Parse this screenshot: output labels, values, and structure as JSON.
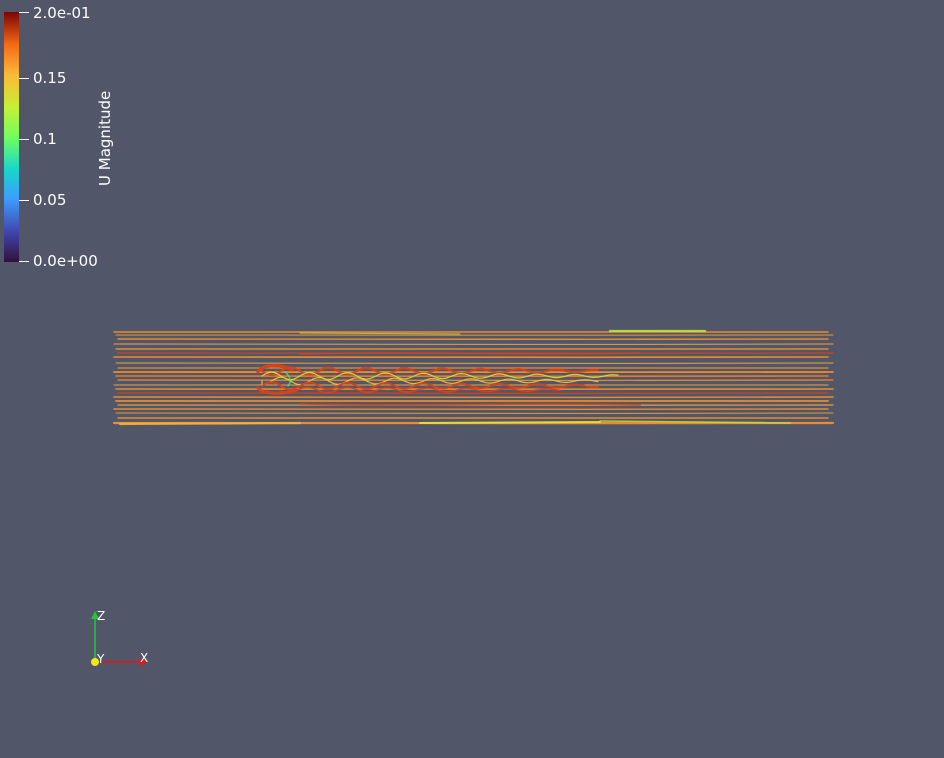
{
  "background_color": "#525669",
  "colorbar": {
    "title": "U Magnitude",
    "ticks": [
      "2.0e-01",
      "0.15",
      "0.1",
      "0.05",
      "0.0e+00"
    ],
    "range": [
      0,
      0.2
    ],
    "colormap": "turbo"
  },
  "orientation_axes": {
    "z_label": "Z",
    "y_label": "Y",
    "x_label": "X",
    "x_color": "#e8141a",
    "y_color": "#f2e81a",
    "z_color": "#22c63a"
  },
  "scene": {
    "type": "streamlines",
    "field": "U Magnitude",
    "dominant_colors": [
      "#f28f2a",
      "#d4431c",
      "#c6e23a"
    ]
  }
}
